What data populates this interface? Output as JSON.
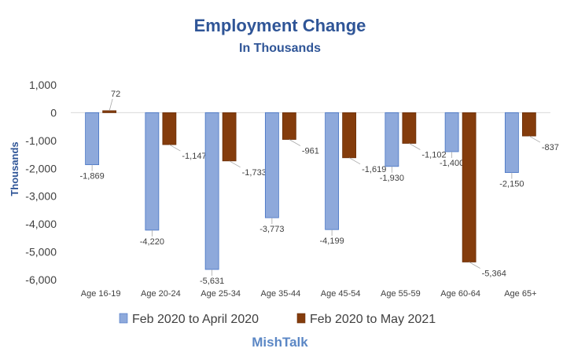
{
  "chart_data": {
    "type": "bar",
    "title": "Employment Change",
    "subtitle": "In Thousands",
    "ylabel": "Thousands",
    "xlabel": "",
    "ylim": [
      -6000,
      1000
    ],
    "yticks": [
      1000,
      0,
      -1000,
      -2000,
      -3000,
      -4000,
      -5000,
      -6000
    ],
    "ytick_labels": [
      "1,000",
      "0",
      "-1,000",
      "-2,000",
      "-3,000",
      "-4,000",
      "-5,000",
      "-6,000"
    ],
    "grid": false,
    "legend_position": "bottom",
    "categories": [
      "Age 16-19",
      "Age 20-24",
      "Age 25-34",
      "Age 35-44",
      "Age 45-54",
      "Age 55-59",
      "Age 60-64",
      "Age 65+"
    ],
    "series": [
      {
        "name": "Feb 2020 to April 2020",
        "color": "#8EA9DB",
        "values": [
          -1869,
          -4220,
          -5631,
          -3773,
          -4199,
          -1930,
          -1400,
          -2150
        ],
        "labels": [
          "-1,869",
          "-4,220",
          "-5,631",
          "-3,773",
          "-4,199",
          "-1,930",
          "-1,400",
          "-2,150"
        ]
      },
      {
        "name": "Feb 2020 to May 2021",
        "color": "#843C0C",
        "values": [
          72,
          -1147,
          -1733,
          -961,
          -1619,
          -1102,
          -5364,
          -837
        ],
        "labels": [
          "72",
          "-1,147",
          "-1,733",
          "-961",
          "-1,619",
          "-1,102",
          "-5,364",
          "-837"
        ]
      }
    ]
  },
  "footer": {
    "text": "MishTalk"
  }
}
